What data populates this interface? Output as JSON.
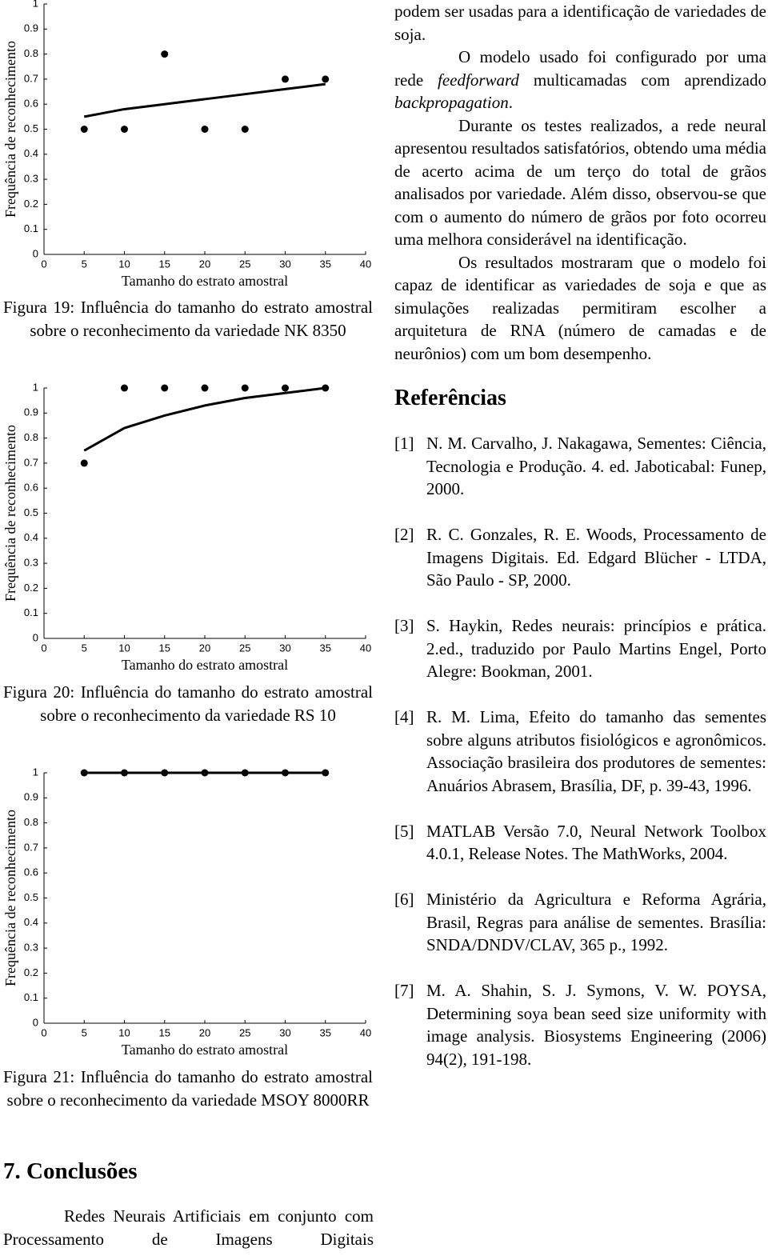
{
  "chart_data": [
    {
      "type": "line",
      "y_label": "Frequência de reconhecimento",
      "x_label": "Tamanho do estrato amostral",
      "caption": "Figura 19: Influência do tamanho do estrato amostral sobre o reconhecimento da variedade NK 8350",
      "xlim": [
        0,
        40
      ],
      "ylim": [
        0,
        1
      ],
      "xticks": [
        0,
        5,
        10,
        15,
        20,
        25,
        30,
        35,
        40
      ],
      "yticks": [
        0,
        0.1,
        0.2,
        0.3,
        0.4,
        0.5,
        0.6,
        0.7,
        0.8,
        0.9,
        1
      ],
      "x": [
        5,
        10,
        15,
        20,
        25,
        30,
        35
      ],
      "series": [
        {
          "mode": "markers",
          "color": "#000000",
          "values": [
            0.5,
            0.5,
            0.8,
            0.5,
            0.5,
            0.7,
            0.7
          ]
        },
        {
          "mode": "line",
          "color": "#000000",
          "values": [
            0.55,
            0.58,
            0.6,
            0.62,
            0.64,
            0.66,
            0.68
          ]
        }
      ]
    },
    {
      "type": "line",
      "y_label": "Frequência de reconhecimento",
      "x_label": "Tamanho do estrato amostral",
      "caption": "Figura 20: Influência do tamanho do estrato amostral sobre o reconhecimento da variedade RS 10",
      "xlim": [
        0,
        40
      ],
      "ylim": [
        0,
        1
      ],
      "xticks": [
        0,
        5,
        10,
        15,
        20,
        25,
        30,
        35,
        40
      ],
      "yticks": [
        0,
        0.1,
        0.2,
        0.3,
        0.4,
        0.5,
        0.6,
        0.7,
        0.8,
        0.9,
        1
      ],
      "x": [
        5,
        10,
        15,
        20,
        25,
        30,
        35
      ],
      "series": [
        {
          "mode": "markers",
          "color": "#000000",
          "values": [
            0.7,
            1,
            1,
            1,
            1,
            1,
            1
          ]
        },
        {
          "mode": "line",
          "color": "#000000",
          "values": [
            0.75,
            0.84,
            0.89,
            0.93,
            0.96,
            0.98,
            1
          ]
        }
      ]
    },
    {
      "type": "line",
      "y_label": "Frequência de reconhecimento",
      "x_label": "Tamanho do estrato amostral",
      "caption": "Figura 21: Influência do tamanho do estrato amostral sobre o reconhecimento da variedade MSOY 8000RR",
      "xlim": [
        0,
        40
      ],
      "ylim": [
        0,
        1
      ],
      "xticks": [
        0,
        5,
        10,
        15,
        20,
        25,
        30,
        35,
        40
      ],
      "yticks": [
        0,
        0.1,
        0.2,
        0.3,
        0.4,
        0.5,
        0.6,
        0.7,
        0.8,
        0.9,
        1
      ],
      "x": [
        5,
        10,
        15,
        20,
        25,
        30,
        35
      ],
      "series": [
        {
          "mode": "markers",
          "color": "#000000",
          "values": [
            1,
            1,
            1,
            1,
            1,
            1,
            1
          ]
        },
        {
          "mode": "line",
          "color": "#000000",
          "values": [
            1,
            1,
            1,
            1,
            1,
            1,
            1
          ]
        }
      ]
    }
  ],
  "document": {
    "left": {
      "heading": "7. Conclusões",
      "paragraph": "Redes Neurais Artificiais em conjunto com Processamento de Imagens Digitais"
    },
    "right": {
      "paragraphs": [
        {
          "parts": [
            "podem ser usadas para a identificação de variedades de soja."
          ]
        },
        {
          "parts": [
            "O modelo usado foi configurado por uma rede ",
            "feedforward",
            " multicamadas com aprendizado ",
            "backpropagation",
            "."
          ]
        },
        {
          "parts": [
            "Durante os testes realizados, a rede neural apresentou resultados satisfatórios, obtendo uma média de acerto acima de um terço do total de grãos analisados por variedade. Além disso, observou-se que com o aumento do número de grãos por foto ocorreu uma melhora considerável na identificação."
          ]
        },
        {
          "parts": [
            "Os resultados mostraram que o modelo foi capaz de identificar as variedades de soja e que as simulações realizadas permitiram escolher a arquitetura de RNA (número de camadas e de neurônios) com um bom desempenho."
          ]
        }
      ],
      "references_title": "Referências",
      "references": [
        {
          "label": "[1]",
          "text": "N. M. Carvalho, J. Nakagawa, Sementes: Ciência, Tecnologia e Produção. 4. ed. Jaboticabal: Funep, 2000."
        },
        {
          "label": "[2]",
          "text": "R. C. Gonzales, R. E. Woods, Processamento de Imagens Digitais. Ed. Edgard Blücher - LTDA, São Paulo - SP, 2000."
        },
        {
          "label": "[3]",
          "text": "S. Haykin, Redes neurais: princípios e prática. 2.ed., traduzido por Paulo Martins Engel, Porto Alegre: Bookman, 2001."
        },
        {
          "label": "[4]",
          "text": "R. M. Lima, Efeito do tamanho das sementes sobre alguns atributos fisiológicos e agronômicos. Associação brasileira dos produtores de sementes: Anuários Abrasem, Brasília, DF, p. 39-43, 1996."
        },
        {
          "label": "[5]",
          "text": "MATLAB Versão 7.0, Neural Network Toolbox 4.0.1, Release Notes. The MathWorks, 2004."
        },
        {
          "label": "[6]",
          "text": "Ministério da Agricultura e Reforma Agrária, Brasil, Regras para análise de sementes. Brasília: SNDA/DNDV/CLAV, 365 p., 1992."
        },
        {
          "label": "[7]",
          "text": "M. A. Shahin, S. J. Symons, V. W. POYSA, Determining soya bean seed size uniformity with image analysis. Biosystems Engineering (2006) 94(2), 191-198."
        }
      ]
    }
  }
}
